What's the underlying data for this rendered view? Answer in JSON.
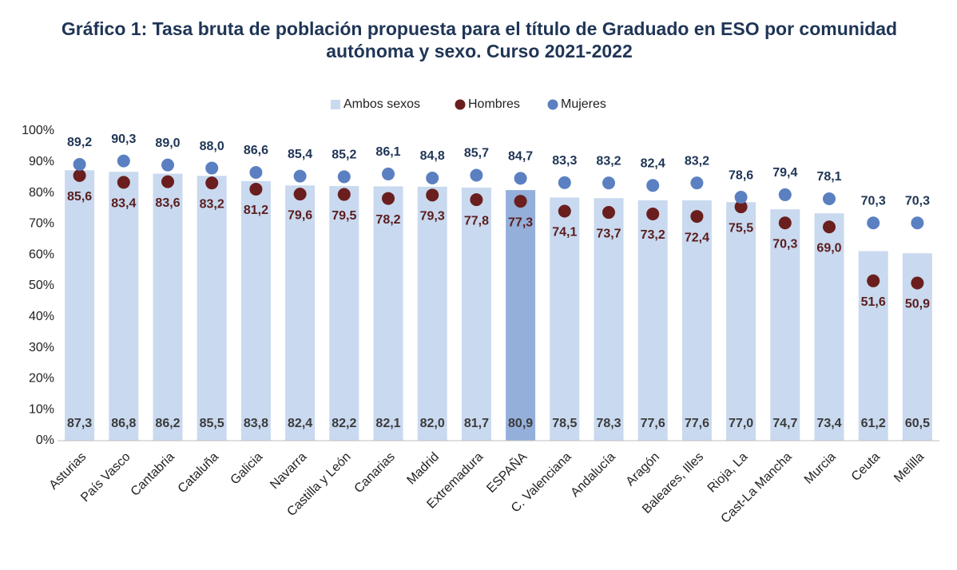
{
  "chart_data": {
    "type": "bar",
    "title": [
      "Gráfico 1: Tasa bruta de población propuesta para el título de Graduado en ESO por comunidad",
      "autónoma y sexo. Curso 2021-2022"
    ],
    "categories": [
      "Asturias",
      "País Vasco",
      "Cantabria",
      "Cataluña",
      "Galicia",
      "Navarra",
      "Castilla y León",
      "Canarias",
      "Madrid",
      "Extremadura",
      "ESPAÑA",
      "C. Valenciana",
      "Andalucía",
      "Aragón",
      "Baleares, Illes",
      "Rioja, La",
      "Cast-La Mancha",
      "Murcia",
      "Ceuta",
      "Melilla"
    ],
    "ylim": [
      0,
      100
    ],
    "yticks": [
      {
        "value": 0,
        "label": "0%"
      },
      {
        "value": 10,
        "label": "10%"
      },
      {
        "value": 20,
        "label": "20%"
      },
      {
        "value": 30,
        "label": "30%"
      },
      {
        "value": 40,
        "label": "40%"
      },
      {
        "value": 50,
        "label": "50%"
      },
      {
        "value": 60,
        "label": "60%"
      },
      {
        "value": 70,
        "label": "70%"
      },
      {
        "value": 80,
        "label": "80%"
      },
      {
        "value": 90,
        "label": "90%"
      },
      {
        "value": 100,
        "label": "100%"
      }
    ],
    "grid": false,
    "legend": "top",
    "series": [
      {
        "name": "Ambos sexos",
        "type": "bar",
        "color": "#c9d9ef",
        "label_color": "#3b3b3b",
        "point_colors": [
          "#c9d9ef",
          "#c9d9ef",
          "#c9d9ef",
          "#c9d9ef",
          "#c9d9ef",
          "#c9d9ef",
          "#c9d9ef",
          "#c9d9ef",
          "#c9d9ef",
          "#c9d9ef",
          "#94afd9",
          "#c9d9ef",
          "#c9d9ef",
          "#c9d9ef",
          "#c9d9ef",
          "#c9d9ef",
          "#c9d9ef",
          "#c9d9ef",
          "#c9d9ef",
          "#c9d9ef"
        ],
        "values": [
          87.3,
          86.8,
          86.2,
          85.5,
          83.8,
          82.4,
          82.2,
          82.1,
          82.0,
          81.7,
          80.9,
          78.5,
          78.3,
          77.6,
          77.6,
          77.0,
          74.7,
          73.4,
          61.2,
          60.5
        ],
        "value_labels": [
          "87,3",
          "86,8",
          "86,2",
          "85,5",
          "83,8",
          "82,4",
          "82,2",
          "82,1",
          "82,0",
          "81,7",
          "80,9",
          "78,5",
          "78,3",
          "77,6",
          "77,6",
          "77,0",
          "74,7",
          "73,4",
          "61,2",
          "60,5"
        ]
      },
      {
        "name": "Hombres",
        "type": "scatter",
        "color": "#6a1e1e",
        "label_color": "#5a1d1d",
        "values": [
          85.6,
          83.4,
          83.6,
          83.2,
          81.2,
          79.6,
          79.5,
          78.2,
          79.3,
          77.8,
          77.3,
          74.1,
          73.7,
          73.2,
          72.4,
          75.5,
          70.3,
          69.0,
          51.6,
          50.9
        ],
        "value_labels": [
          "85,6",
          "83,4",
          "83,6",
          "83,2",
          "81,2",
          "79,6",
          "79,5",
          "78,2",
          "79,3",
          "77,8",
          "77,3",
          "74,1",
          "73,7",
          "73,2",
          "72,4",
          "75,5",
          "70,3",
          "69,0",
          "51,6",
          "50,9"
        ]
      },
      {
        "name": "Mujeres",
        "type": "scatter",
        "color": "#5b80c2",
        "label_color": "#1f3556",
        "values": [
          89.2,
          90.3,
          89.0,
          88.0,
          86.6,
          85.4,
          85.2,
          86.1,
          84.8,
          85.7,
          84.7,
          83.3,
          83.2,
          82.4,
          83.2,
          78.6,
          79.4,
          78.1,
          70.3,
          70.3
        ],
        "value_labels": [
          "89,2",
          "90,3",
          "89,0",
          "88,0",
          "86,6",
          "85,4",
          "85,2",
          "86,1",
          "84,8",
          "85,7",
          "84,7",
          "83,3",
          "83,2",
          "82,4",
          "83,2",
          "78,6",
          "79,4",
          "78,1",
          "70,3",
          "70,3"
        ]
      }
    ]
  }
}
